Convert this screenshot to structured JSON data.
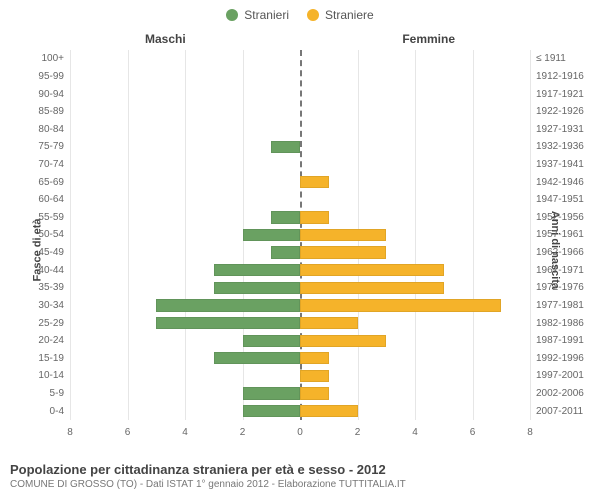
{
  "chart": {
    "type": "population-pyramid",
    "legend": {
      "male": {
        "label": "Stranieri",
        "color": "#6aa162"
      },
      "female": {
        "label": "Straniere",
        "color": "#f5b32a"
      }
    },
    "column_headers": {
      "left": "Maschi",
      "right": "Femmine"
    },
    "y_axis_left_title": "Fasce di età",
    "y_axis_right_title": "Anni di nascita",
    "x_axis": {
      "max": 8,
      "ticks": [
        8,
        6,
        4,
        2,
        0,
        2,
        4,
        6,
        8
      ],
      "grid_color": "#e6e6e6",
      "centerline_color": "#777777"
    },
    "bar": {
      "height_ratio": 0.7,
      "border_color": "rgba(0,0,0,0.08)"
    },
    "background_color": "#ffffff",
    "label_fontsize": 10,
    "header_fontsize": 12,
    "rows": [
      {
        "age": "100+",
        "birth": "≤ 1911",
        "male": 0,
        "female": 0
      },
      {
        "age": "95-99",
        "birth": "1912-1916",
        "male": 0,
        "female": 0
      },
      {
        "age": "90-94",
        "birth": "1917-1921",
        "male": 0,
        "female": 0
      },
      {
        "age": "85-89",
        "birth": "1922-1926",
        "male": 0,
        "female": 0
      },
      {
        "age": "80-84",
        "birth": "1927-1931",
        "male": 0,
        "female": 0
      },
      {
        "age": "75-79",
        "birth": "1932-1936",
        "male": 1,
        "female": 0
      },
      {
        "age": "70-74",
        "birth": "1937-1941",
        "male": 0,
        "female": 0
      },
      {
        "age": "65-69",
        "birth": "1942-1946",
        "male": 0,
        "female": 1
      },
      {
        "age": "60-64",
        "birth": "1947-1951",
        "male": 0,
        "female": 0
      },
      {
        "age": "55-59",
        "birth": "1952-1956",
        "male": 1,
        "female": 1
      },
      {
        "age": "50-54",
        "birth": "1957-1961",
        "male": 2,
        "female": 3
      },
      {
        "age": "45-49",
        "birth": "1962-1966",
        "male": 1,
        "female": 3
      },
      {
        "age": "40-44",
        "birth": "1967-1971",
        "male": 3,
        "female": 5
      },
      {
        "age": "35-39",
        "birth": "1972-1976",
        "male": 3,
        "female": 5
      },
      {
        "age": "30-34",
        "birth": "1977-1981",
        "male": 5,
        "female": 7
      },
      {
        "age": "25-29",
        "birth": "1982-1986",
        "male": 5,
        "female": 2
      },
      {
        "age": "20-24",
        "birth": "1987-1991",
        "male": 2,
        "female": 3
      },
      {
        "age": "15-19",
        "birth": "1992-1996",
        "male": 3,
        "female": 1
      },
      {
        "age": "10-14",
        "birth": "1997-2001",
        "male": 0,
        "female": 1
      },
      {
        "age": "5-9",
        "birth": "2002-2006",
        "male": 2,
        "female": 1
      },
      {
        "age": "0-4",
        "birth": "2007-2011",
        "male": 2,
        "female": 2
      }
    ]
  },
  "caption": {
    "title": "Popolazione per cittadinanza straniera per età e sesso - 2012",
    "sub": "COMUNE DI GROSSO (TO) - Dati ISTAT 1° gennaio 2012 - Elaborazione TUTTITALIA.IT"
  }
}
